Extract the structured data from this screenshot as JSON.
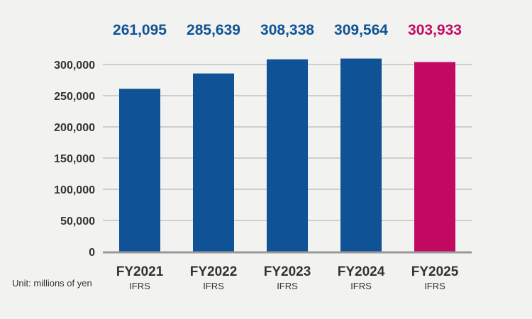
{
  "chart_data": {
    "type": "bar",
    "categories": [
      "FY2021",
      "FY2022",
      "FY2023",
      "FY2024",
      "FY2025"
    ],
    "sublabels": [
      "IFRS",
      "IFRS",
      "IFRS",
      "IFRS",
      "IFRS"
    ],
    "values": [
      261095,
      285639,
      308338,
      309564,
      303933
    ],
    "value_labels": [
      "261,095",
      "285,639",
      "308,338",
      "309,564",
      "303,933"
    ],
    "colors": [
      "#0f5396",
      "#0f5396",
      "#0f5396",
      "#0f5396",
      "#c20a63"
    ],
    "yticks": [
      0,
      50000,
      100000,
      150000,
      200000,
      250000,
      300000
    ],
    "ytick_labels": [
      "0",
      "50,000",
      "100,000",
      "150,000",
      "200,000",
      "250,000",
      "300,000"
    ],
    "ylim": [
      0,
      300000
    ],
    "grid": true,
    "unit": "Unit: millions of yen",
    "gridline_color": "#aaaaaa",
    "axis_color": "#999999"
  }
}
